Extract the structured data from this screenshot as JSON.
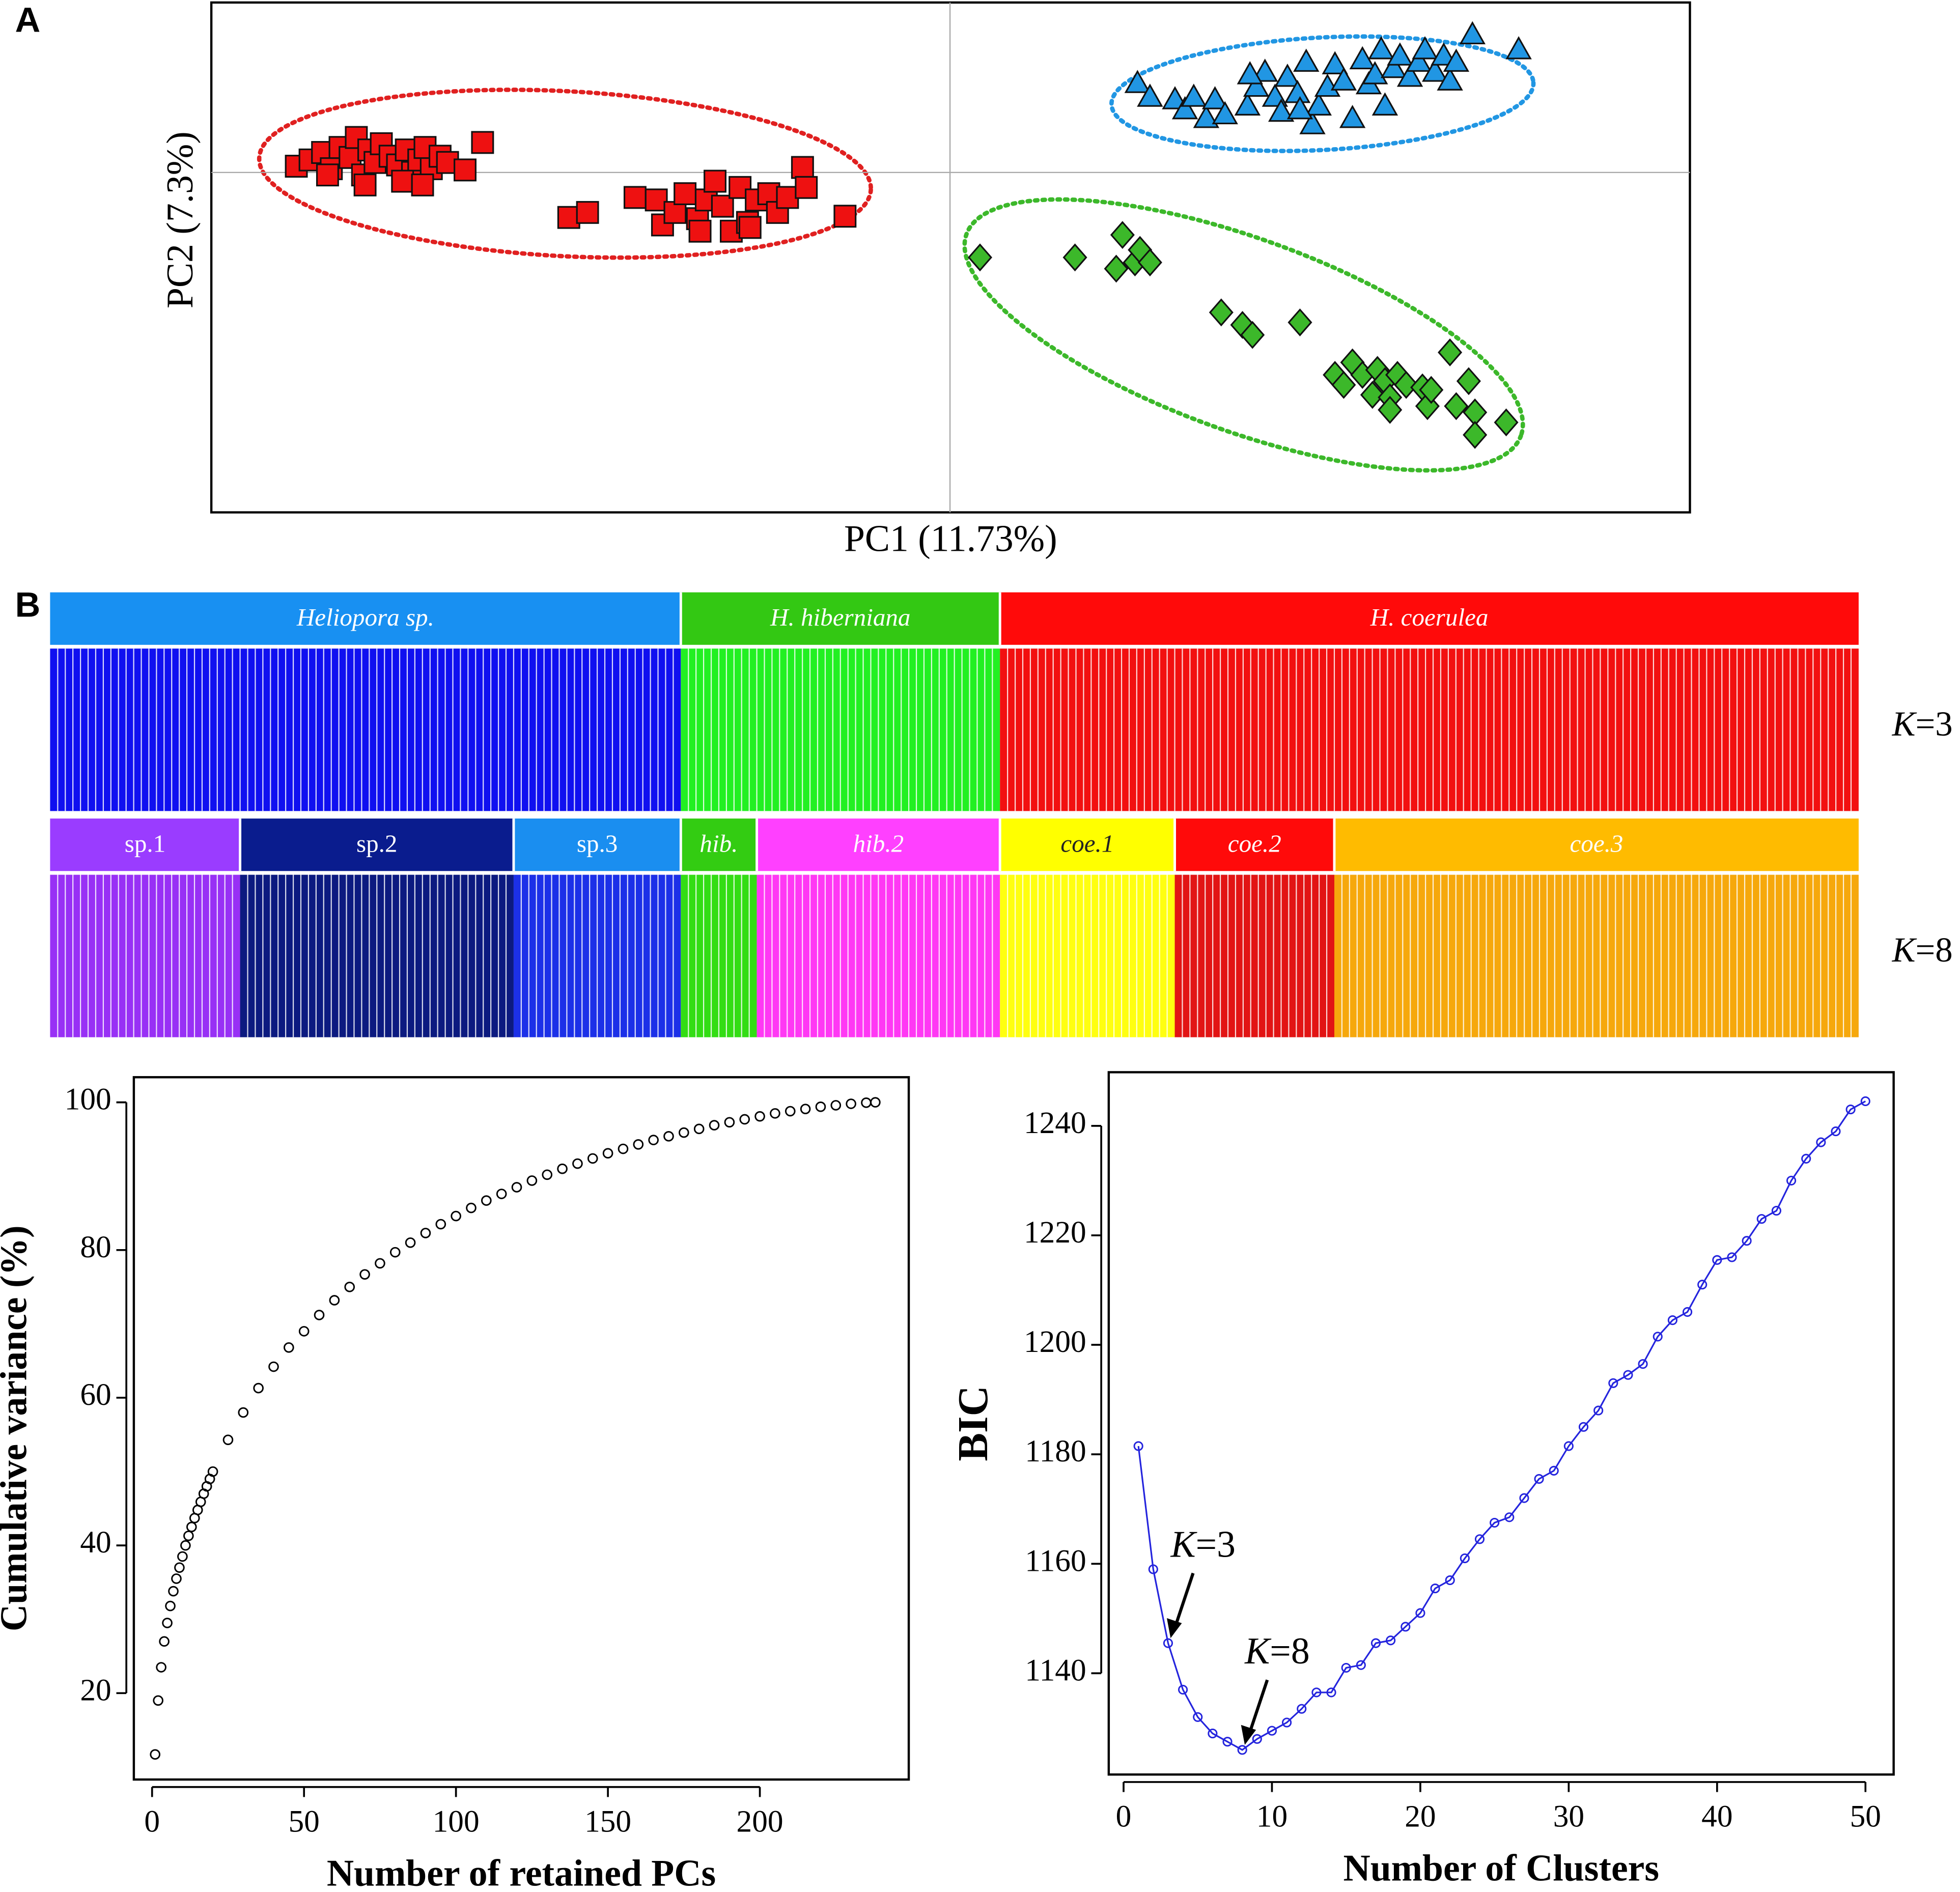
{
  "chart_data": [
    {
      "type": "scatter",
      "panel_label": "A",
      "xlabel": "PC1 (11.73%)",
      "ylabel": "PC2 (7.3%)",
      "xlim": [
        -591,
        592
      ],
      "ylim": [
        -272,
        136
      ],
      "hline": 0,
      "vline": 0,
      "series": [
        {
          "color": "#ee1111",
          "marker": "square",
          "x": [
            -523,
            -512,
            -502,
            -495,
            -488,
            -480,
            -475,
            -470,
            -465,
            -460,
            -455,
            -448,
            -442,
            -435,
            -430,
            -425,
            -420,
            -415,
            -408,
            -402,
            -388,
            -374,
            -498,
            -468,
            -438,
            -422,
            -305,
            -290,
            -252,
            -235,
            -230,
            -220,
            -212,
            -202,
            -195,
            -188,
            -182,
            -175,
            -168,
            -162,
            -155,
            -145,
            -138,
            -130,
            -118,
            -115,
            -84,
            -200,
            -160
          ],
          "values": [
            5,
            10,
            16,
            3,
            20,
            12,
            28,
            -2,
            18,
            8,
            23,
            13,
            6,
            18,
            0,
            10,
            20,
            3,
            13,
            8,
            2,
            24,
            -2,
            -10,
            -7,
            -10,
            -36,
            -32,
            -20,
            -22,
            -42,
            -32,
            -17,
            -37,
            -22,
            -7,
            -27,
            -47,
            -12,
            -40,
            -22,
            -17,
            -32,
            -20,
            4,
            -12,
            -35,
            -47,
            -44
          ]
        },
        {
          "color": "#2196e3",
          "marker": "triangle",
          "x": [
            150,
            160,
            180,
            188,
            195,
            205,
            212,
            220,
            238,
            245,
            252,
            260,
            265,
            270,
            278,
            285,
            290,
            295,
            302,
            308,
            315,
            322,
            330,
            335,
            340,
            345,
            348,
            355,
            360,
            368,
            375,
            380,
            388,
            395,
            400,
            405,
            418,
            455,
            240,
            280
          ],
          "values": [
            71,
            60,
            58,
            50,
            60,
            43,
            58,
            46,
            53,
            68,
            80,
            60,
            48,
            76,
            63,
            88,
            38,
            53,
            68,
            86,
            73,
            43,
            90,
            70,
            78,
            98,
            53,
            83,
            93,
            76,
            88,
            98,
            80,
            93,
            73,
            88,
            110,
            98,
            78,
            50
          ]
        },
        {
          "color": "#3cb82a",
          "marker": "diamond",
          "x": [
            24,
            100,
            133,
            138,
            148,
            152,
            160,
            217,
            234,
            242,
            280,
            308,
            315,
            322,
            330,
            338,
            342,
            348,
            352,
            358,
            365,
            378,
            382,
            385,
            400,
            405,
            415,
            420,
            420,
            445,
            352
          ],
          "values": [
            -68,
            -68,
            -77,
            -50,
            -72,
            -62,
            -72,
            -112,
            -122,
            -130,
            -120,
            -162,
            -170,
            -152,
            -162,
            -178,
            -158,
            -167,
            -180,
            -162,
            -170,
            -172,
            -187,
            -174,
            -144,
            -187,
            -167,
            -192,
            -210,
            -200,
            -190
          ]
        }
      ]
    },
    {
      "type": "structure",
      "panel_label": "B",
      "label": "K=3",
      "segments": [
        {
          "name": "Heliopora sp.",
          "italic": true,
          "color": "#1890f2",
          "bar_color": "#1010f0",
          "count": 83
        },
        {
          "name": "H. hiberniana",
          "italic": true,
          "color": "#33c813",
          "bar_color": "#22f022",
          "count": 42
        },
        {
          "name": "H. coerulea",
          "italic": true,
          "color": "#ff0a0a",
          "bar_color": "#f21010",
          "count": 113
        }
      ]
    },
    {
      "type": "structure",
      "label": "K=8",
      "segments": [
        {
          "name": "sp.1",
          "italic": false,
          "color": "#9a3cff",
          "bar_color": "#9830f5",
          "count": 25
        },
        {
          "name": "sp.2",
          "italic": false,
          "color": "#0a1c8e",
          "bar_color": "#0c1a80",
          "count": 36
        },
        {
          "name": "sp.3",
          "italic": false,
          "color": "#1a8ef0",
          "bar_color": "#1c30e8",
          "count": 22
        },
        {
          "name": "hib.",
          "italic": true,
          "color": "#33cc12",
          "bar_color": "#33dd14",
          "count": 10
        },
        {
          "name": "hib.2",
          "italic": true,
          "color": "#ff40ff",
          "bar_color": "#ff38f4",
          "count": 32
        },
        {
          "name": "coe.1",
          "italic": true,
          "color": "#ffff00",
          "bar_color": "#ffff10",
          "count": 23
        },
        {
          "name": "coe.2",
          "italic": true,
          "color": "#ff0a0a",
          "bar_color": "#e21414",
          "count": 21
        },
        {
          "name": "coe.3",
          "italic": true,
          "color": "#ffbb00",
          "bar_color": "#f6a80c",
          "count": 69
        }
      ]
    },
    {
      "type": "scatter",
      "xlabel": "Number of retained PCs",
      "ylabel": "Cumulative variance (%)",
      "xlim": [
        -6,
        249
      ],
      "ylim": [
        8.3,
        103.4
      ],
      "xticks": [
        0,
        50,
        100,
        150,
        200
      ],
      "yticks": [
        20,
        40,
        60,
        80,
        100
      ],
      "series": [
        {
          "color": "#000000",
          "marker": "circle",
          "x": [
            1,
            2,
            3,
            4,
            5,
            6,
            7,
            8,
            9,
            10,
            11,
            12,
            13,
            14,
            15,
            16,
            17,
            18,
            19,
            20,
            25,
            30,
            35,
            40,
            45,
            50,
            55,
            60,
            65,
            70,
            75,
            80,
            85,
            90,
            95,
            100,
            105,
            110,
            115,
            120,
            125,
            130,
            135,
            140,
            145,
            150,
            155,
            160,
            165,
            170,
            175,
            180,
            185,
            190,
            195,
            200,
            205,
            210,
            215,
            220,
            225,
            230,
            235,
            238
          ],
          "values": [
            11.7,
            19,
            23.5,
            27,
            29.5,
            31.8,
            33.8,
            35.5,
            37,
            38.5,
            40,
            41.3,
            42.5,
            43.7,
            44.8,
            45.9,
            47,
            48,
            49,
            50,
            54.3,
            58,
            61.3,
            64.2,
            66.8,
            69,
            71.2,
            73.2,
            75,
            76.7,
            78.2,
            79.7,
            81,
            82.3,
            83.5,
            84.6,
            85.7,
            86.7,
            87.6,
            88.5,
            89.4,
            90.2,
            91,
            91.7,
            92.4,
            93.1,
            93.7,
            94.3,
            94.9,
            95.4,
            95.9,
            96.4,
            96.9,
            97.3,
            97.7,
            98.1,
            98.5,
            98.8,
            99.1,
            99.4,
            99.6,
            99.8,
            99.95,
            100
          ]
        }
      ]
    },
    {
      "type": "line",
      "xlabel": "Number of Clusters",
      "ylabel": "BIC",
      "xlim": [
        -1,
        51.9
      ],
      "ylim": [
        1121.5,
        1249.8
      ],
      "xticks": [
        0,
        10,
        20,
        30,
        40,
        50
      ],
      "yticks": [
        1140,
        1160,
        1180,
        1200,
        1220,
        1240
      ],
      "annotations": [
        {
          "text": "K=3",
          "x": 3
        },
        {
          "text": "K=8",
          "x": 8
        }
      ],
      "series": [
        {
          "color": "#2424dd",
          "marker": "circle",
          "x": [
            1,
            2,
            3,
            4,
            5,
            6,
            7,
            8,
            9,
            10,
            11,
            12,
            13,
            14,
            15,
            16,
            17,
            18,
            19,
            20,
            21,
            22,
            23,
            24,
            25,
            26,
            27,
            28,
            29,
            30,
            31,
            32,
            33,
            34,
            35,
            36,
            37,
            38,
            39,
            40,
            41,
            42,
            43,
            44,
            45,
            46,
            47,
            48,
            49,
            50
          ],
          "values": [
            1181.5,
            1159,
            1145.5,
            1137,
            1132,
            1129,
            1127.5,
            1126,
            1128,
            1129.5,
            1131,
            1133.5,
            1136.5,
            1136.5,
            1141,
            1141.5,
            1145.5,
            1146,
            1148.5,
            1151,
            1155.5,
            1157,
            1161,
            1164.5,
            1167.5,
            1168.5,
            1172,
            1175.5,
            1177,
            1181.5,
            1185,
            1188,
            1193,
            1194.5,
            1196.5,
            1201.5,
            1204.5,
            1206,
            1211,
            1215.5,
            1216,
            1219,
            1223,
            1224.5,
            1230,
            1234,
            1237,
            1239,
            1243,
            1244.5
          ]
        }
      ]
    }
  ]
}
